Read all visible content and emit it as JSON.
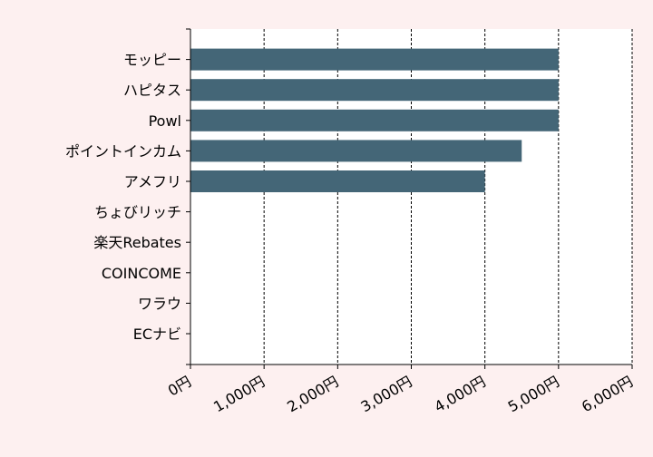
{
  "chart_data": {
    "type": "bar",
    "orientation": "horizontal",
    "categories": [
      "モッピー",
      "ハピタス",
      "Powl",
      "ポイントインカム",
      "アメフリ",
      "ちょびリッチ",
      "楽天Rebates",
      "COINCOME",
      "ワラウ",
      "ECナビ"
    ],
    "values": [
      5000,
      5000,
      5000,
      4500,
      4000,
      0,
      0,
      0,
      0,
      0
    ],
    "xlim": [
      0,
      6000
    ],
    "x_ticks": [
      0,
      1000,
      2000,
      3000,
      4000,
      5000,
      6000
    ],
    "x_tick_labels": [
      "0円",
      "1,000円",
      "2,000円",
      "3,000円",
      "4,000円",
      "5,000円",
      "6,000円"
    ],
    "title": "",
    "xlabel": "",
    "ylabel": "",
    "grid": "vertical dashed",
    "legend": "none",
    "colors": {
      "page_background": "#fdf0f0",
      "plot_background": "#ffffff",
      "bar": "#446677",
      "axis": "#000000",
      "grid": "#000000"
    }
  }
}
